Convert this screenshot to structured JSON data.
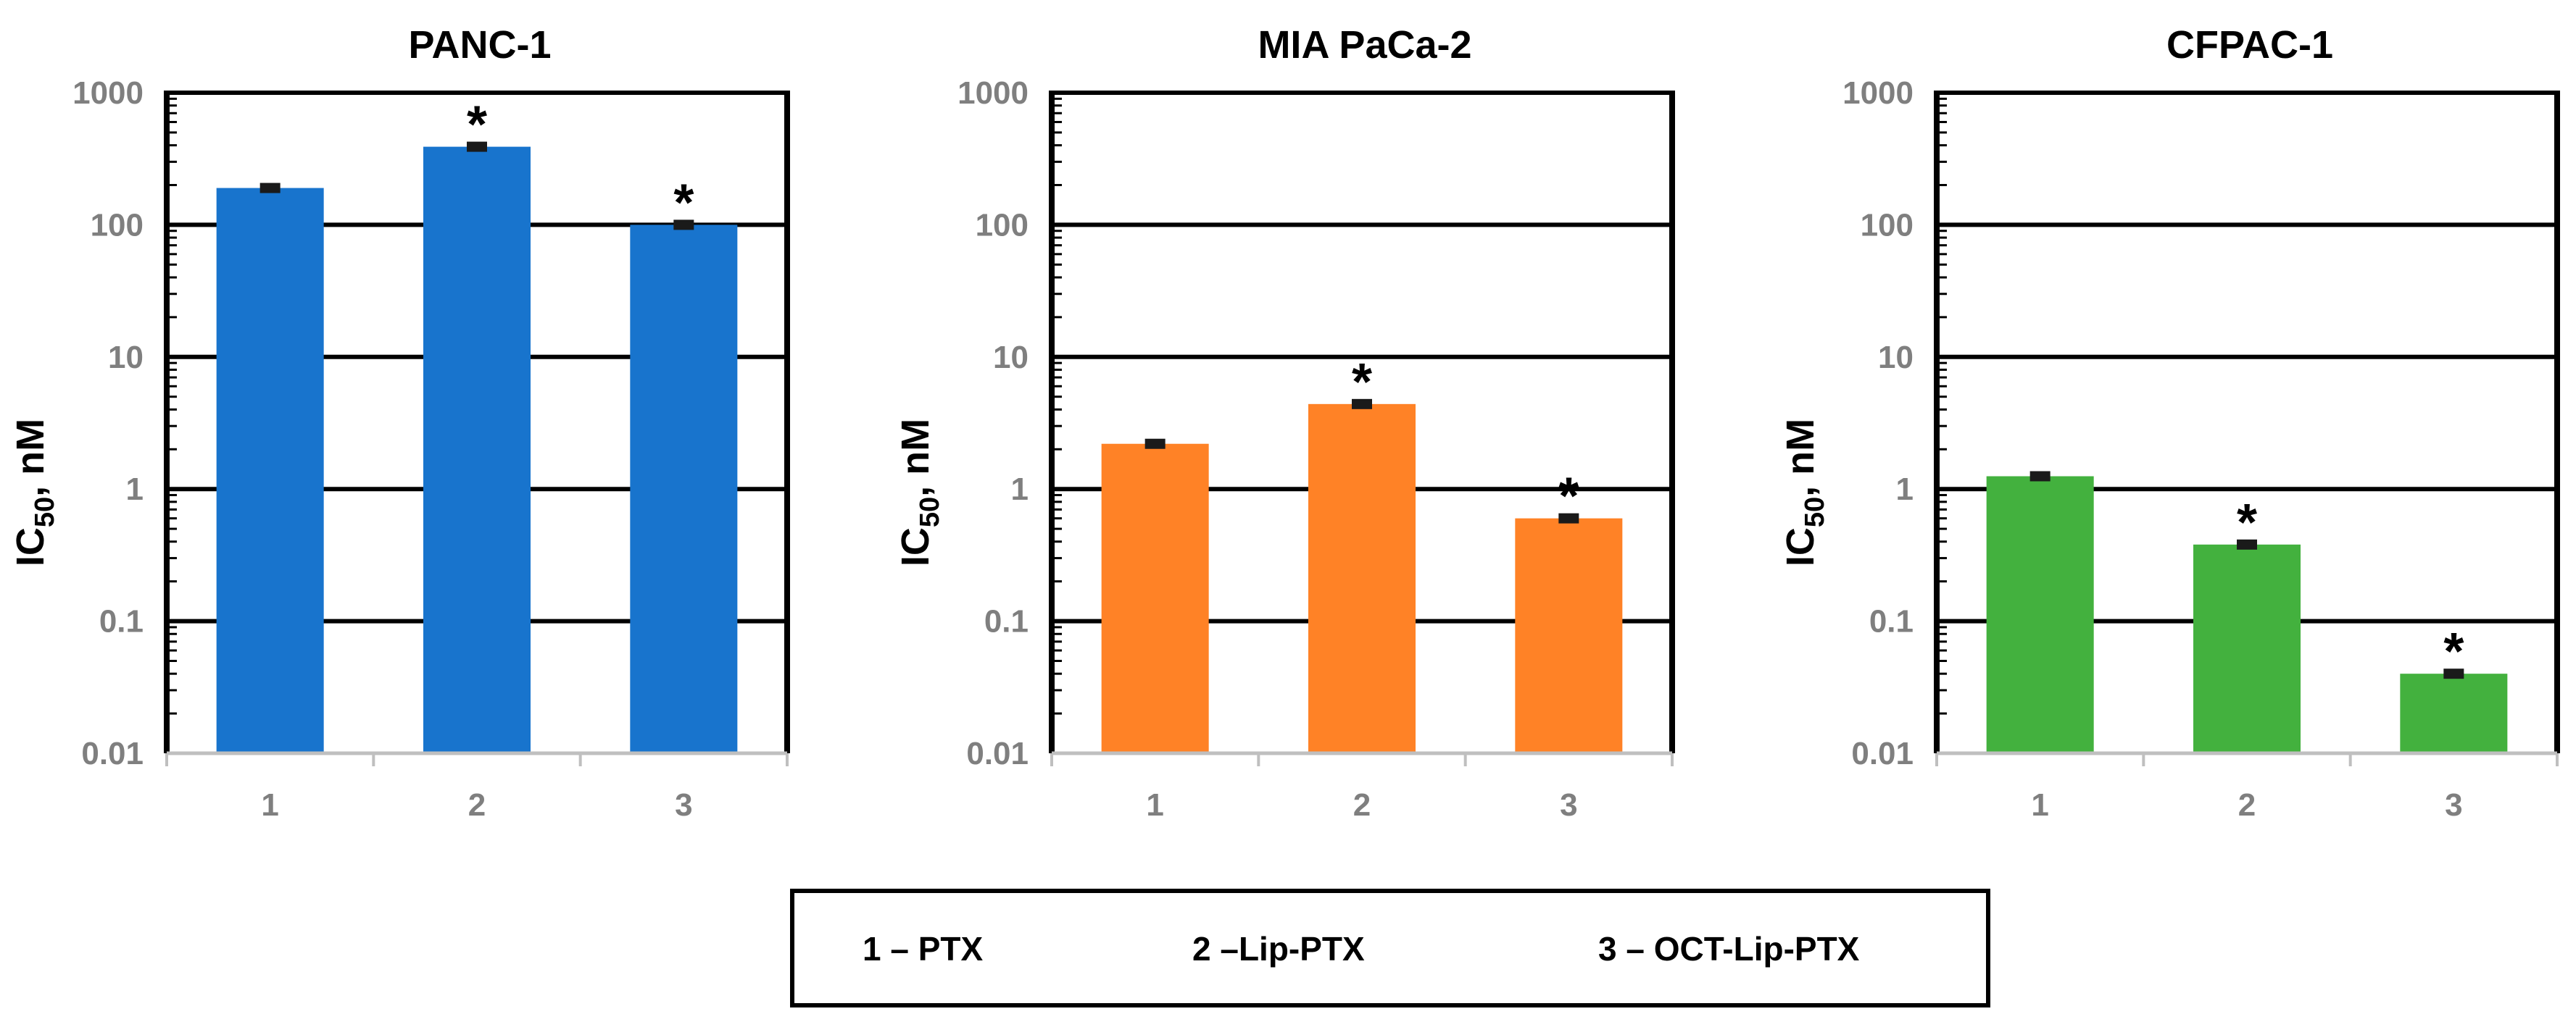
{
  "chart_data": [
    {
      "type": "bar",
      "title": "PANC-1",
      "ylabel": "IC50, nM",
      "yscale": "log",
      "ylim": [
        0.01,
        1000
      ],
      "yticks": [
        "1000",
        "100",
        "10",
        "1",
        "0.1",
        "0.01"
      ],
      "categories": [
        "1",
        "2",
        "3"
      ],
      "values": [
        190,
        390,
        100
      ],
      "significant": [
        false,
        true,
        true
      ],
      "significance_marker": "*",
      "color": "#1874CD"
    },
    {
      "type": "bar",
      "title": "MIA PaCa-2",
      "ylabel": "IC50, nM",
      "yscale": "log",
      "ylim": [
        0.01,
        1000
      ],
      "yticks": [
        "1000",
        "100",
        "10",
        "1",
        "0.1",
        "0.01"
      ],
      "categories": [
        "1",
        "2",
        "3"
      ],
      "values": [
        2.2,
        4.4,
        0.6
      ],
      "significant": [
        false,
        true,
        true
      ],
      "significance_marker": "*",
      "color": "#FF8226"
    },
    {
      "type": "bar",
      "title": "CFPAC-1",
      "ylabel": "IC50, nM",
      "yscale": "log",
      "ylim": [
        0.01,
        1000
      ],
      "yticks": [
        "1000",
        "100",
        "10",
        "1",
        "0.1",
        "0.01"
      ],
      "categories": [
        "1",
        "2",
        "3"
      ],
      "values": [
        1.25,
        0.38,
        0.04
      ],
      "significant": [
        false,
        true,
        true
      ],
      "significance_marker": "*",
      "color": "#43B13E"
    }
  ],
  "legend": {
    "items": [
      "1 – PTX",
      "2 –Lip-PTX",
      "3 – OCT-Lip-PTX"
    ]
  }
}
